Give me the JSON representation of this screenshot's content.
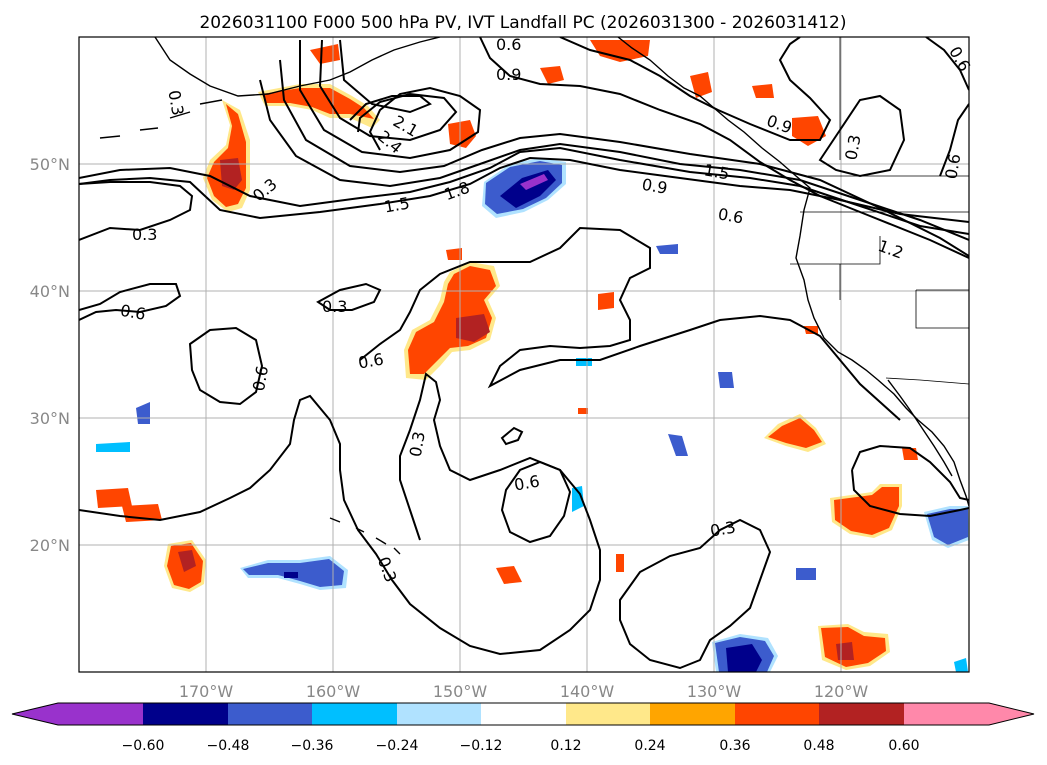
{
  "title": "2026031100 F000 500 hPa PV, IVT Landfall PC (2026031300 - 2026031412)",
  "map": {
    "lon_range": [
      -180,
      -110
    ],
    "lat_range": [
      10,
      60
    ],
    "lat_ticks": [
      {
        "value": 20,
        "label": "20°N"
      },
      {
        "value": 30,
        "label": "30°N"
      },
      {
        "value": 40,
        "label": "40°N"
      },
      {
        "value": 50,
        "label": "50°N"
      }
    ],
    "lon_ticks": [
      {
        "value": -170,
        "label": "170°W"
      },
      {
        "value": -160,
        "label": "160°W"
      },
      {
        "value": -150,
        "label": "150°W"
      },
      {
        "value": -140,
        "label": "140°W"
      },
      {
        "value": -130,
        "label": "130°W"
      },
      {
        "value": -120,
        "label": "120°W"
      }
    ],
    "grid": true,
    "contour_labels": [
      "0.3",
      "0.6",
      "0.9",
      "1.2",
      "1.5",
      "1.8",
      "2.1",
      "2.4"
    ]
  },
  "colorbar": {
    "levels": [
      "−0.60",
      "−0.48",
      "−0.36",
      "−0.24",
      "−0.12",
      "0.12",
      "0.24",
      "0.36",
      "0.48",
      "0.60"
    ],
    "colors": [
      "#9932cc",
      "#00008b",
      "#3c5ccd",
      "#00bfff",
      "#b0e2ff",
      "#ffffff",
      "#ffe88a",
      "#ffa500",
      "#ff4500",
      "#b22222",
      "#ff88aa"
    ],
    "extend": "both"
  },
  "colors": {
    "contour": "#000000",
    "grid": "#b0b0b0",
    "coast": "#000000"
  }
}
